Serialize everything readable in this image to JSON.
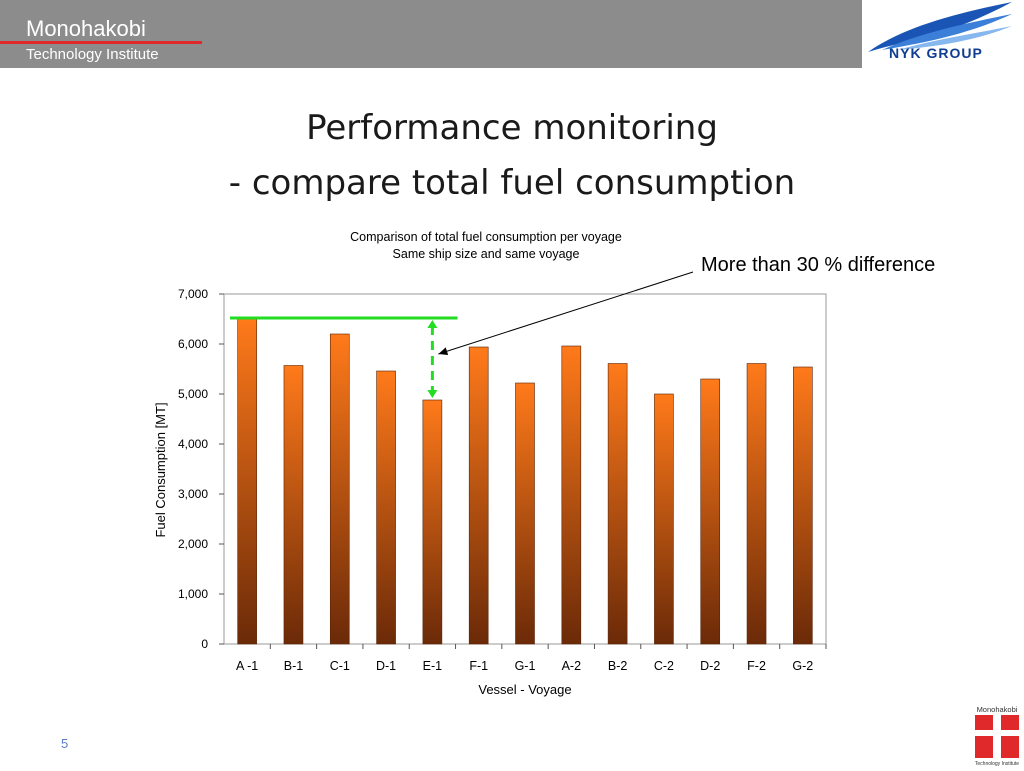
{
  "header": {
    "org_line1": "Monohakobi",
    "org_line2": "Technology Institute",
    "logo_text": "NYK GROUP",
    "bar_color": "#8c8c8c",
    "accent_color": "#e0292b"
  },
  "slide": {
    "title_line1": "Performance monitoring",
    "title_line2": "- compare total fuel consumption",
    "page_number": "5"
  },
  "annotation": {
    "callout": "More than 30 % difference"
  },
  "footer_logo": {
    "text": "Monohakobi",
    "subtext": "Technology Institute"
  },
  "chart_data": {
    "type": "bar",
    "title": "Comparison of total fuel consumption per voyage",
    "subtitle": "Same ship size and same voyage",
    "xlabel": "Vessel - Voyage",
    "ylabel": "Fuel Consumption [MT]",
    "categories": [
      "A -1",
      "B-1",
      "C-1",
      "D-1",
      "E-1",
      "F-1",
      "G-1",
      "A-2",
      "B-2",
      "C-2",
      "D-2",
      "F-2",
      "G-2"
    ],
    "values": [
      6520,
      5570,
      6200,
      5460,
      4880,
      5940,
      5220,
      5960,
      5610,
      5000,
      5300,
      5610,
      5540
    ],
    "ylim": [
      0,
      7000
    ],
    "yticks": [
      0,
      1000,
      2000,
      3000,
      4000,
      5000,
      6000,
      7000
    ],
    "ytick_labels": [
      "0",
      "1,000",
      "2,000",
      "3,000",
      "4,000",
      "5,000",
      "6,000",
      "7,000"
    ],
    "grid": false,
    "bar_color_top": "#ff7a1a",
    "bar_color_bottom": "#6b2a08",
    "max_line_color": "#22dd22",
    "max_line_value": 6520
  }
}
